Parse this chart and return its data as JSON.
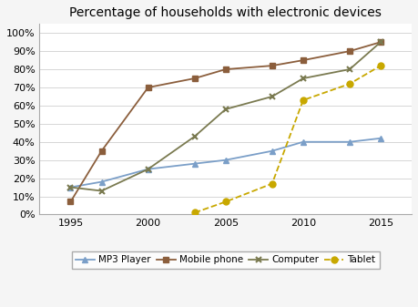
{
  "title": "Percentage of households with electronic devices",
  "years": [
    1995,
    1997,
    2000,
    2003,
    2005,
    2008,
    2010,
    2013,
    2015
  ],
  "mp3_player": [
    0.15,
    0.18,
    0.25,
    0.28,
    0.3,
    0.35,
    0.4,
    0.4,
    0.42
  ],
  "mobile_phone": [
    0.07,
    0.35,
    0.7,
    0.75,
    0.8,
    0.82,
    0.85,
    0.9,
    0.95
  ],
  "computer": [
    0.15,
    0.13,
    0.25,
    0.43,
    0.58,
    0.65,
    0.75,
    0.8,
    0.95
  ],
  "tablet": [
    null,
    null,
    null,
    0.01,
    0.07,
    0.17,
    0.63,
    0.72,
    0.82
  ],
  "mp3_color": "#7b9fc8",
  "mobile_color": "#8B5E3C",
  "computer_color": "#7a7a50",
  "tablet_color": "#c8a800",
  "bg_color": "#f5f5f5",
  "plot_bg": "#ffffff",
  "ylim": [
    0,
    1.05
  ],
  "xlim": [
    1993,
    2017
  ],
  "xticks": [
    1995,
    2000,
    2005,
    2010,
    2015
  ],
  "yticks": [
    0.0,
    0.1,
    0.2,
    0.3,
    0.4,
    0.5,
    0.6,
    0.7,
    0.8,
    0.9,
    1.0
  ]
}
